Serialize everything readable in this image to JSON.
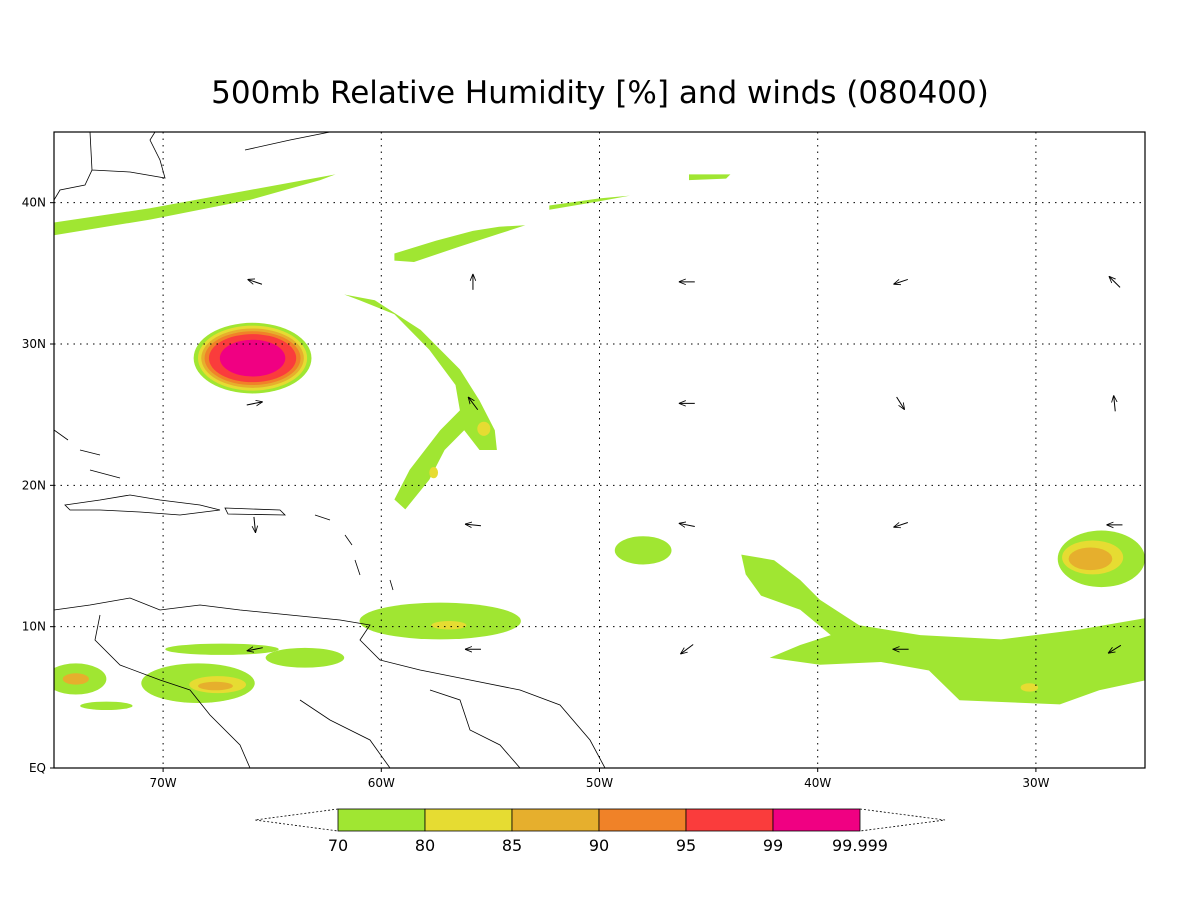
{
  "chart_data": {
    "type": "contour_map",
    "title": "500mb Relative Humidity [%] and winds (080400)",
    "xlim": [
      -75,
      -25
    ],
    "ylim": [
      0,
      45
    ],
    "xticks": [
      {
        "value": -70,
        "label": "70W"
      },
      {
        "value": -60,
        "label": "60W"
      },
      {
        "value": -50,
        "label": "50W"
      },
      {
        "value": -40,
        "label": "40W"
      },
      {
        "value": -30,
        "label": "30W"
      }
    ],
    "yticks": [
      {
        "value": 0,
        "label": "EQ"
      },
      {
        "value": 10,
        "label": "10N"
      },
      {
        "value": 20,
        "label": "20N"
      },
      {
        "value": 30,
        "label": "30N"
      },
      {
        "value": 40,
        "label": "40N"
      }
    ],
    "grid": true,
    "levels": [
      70,
      80,
      85,
      90,
      95,
      99,
      99.999
    ],
    "colors": [
      "#a0e632",
      "#e6dc32",
      "#e6af2d",
      "#f08228",
      "#fa3c3c",
      "#f00082"
    ],
    "areas": [
      {
        "level": 70,
        "points": [
          [
            -75,
            38.6
          ],
          [
            -70.6,
            39.6
          ],
          [
            -66,
            40.9
          ],
          [
            -62.1,
            42.0
          ],
          [
            -62.8,
            41.6
          ],
          [
            -66,
            40.2
          ],
          [
            -70.6,
            38.8
          ],
          [
            -75,
            37.7
          ]
        ]
      },
      {
        "level": 70,
        "points": [
          [
            -45.9,
            42.0
          ],
          [
            -44.0,
            42.0
          ],
          [
            -44.2,
            41.7
          ],
          [
            -45.9,
            41.6
          ]
        ]
      },
      {
        "level": 70,
        "points": [
          [
            -59.4,
            36.4
          ],
          [
            -57.5,
            37.3
          ],
          [
            -55.8,
            38.0
          ],
          [
            -54.6,
            38.3
          ],
          [
            -53.4,
            38.4
          ],
          [
            -54.6,
            37.8
          ],
          [
            -56.4,
            36.9
          ],
          [
            -58.5,
            35.8
          ],
          [
            -59.4,
            35.9
          ]
        ]
      },
      {
        "level": 70,
        "points": [
          [
            -52.3,
            39.8
          ],
          [
            -50.0,
            40.3
          ],
          [
            -48.6,
            40.5
          ],
          [
            -50.0,
            40.1
          ],
          [
            -52.3,
            39.5
          ]
        ]
      },
      {
        "level": 70,
        "points": [
          [
            -61.7,
            33.5
          ],
          [
            -60.3,
            33.1
          ],
          [
            -58.2,
            31.0
          ],
          [
            -56.4,
            28.2
          ],
          [
            -55.5,
            26.0
          ],
          [
            -54.8,
            23.9
          ],
          [
            -54.7,
            22.5
          ],
          [
            -55.5,
            22.5
          ],
          [
            -56.2,
            23.9
          ],
          [
            -57.1,
            22.5
          ],
          [
            -57.8,
            20.4
          ],
          [
            -58.9,
            18.3
          ],
          [
            -59.4,
            19.0
          ],
          [
            -58.7,
            21.1
          ],
          [
            -57.3,
            23.9
          ],
          [
            -56.4,
            25.3
          ],
          [
            -56.6,
            27.1
          ],
          [
            -57.8,
            29.6
          ],
          [
            -59.4,
            32.1
          ],
          [
            -61.0,
            33.1
          ]
        ]
      },
      {
        "level": 80,
        "ellipse": [
          -55.3,
          24.0,
          0.3,
          0.5
        ]
      },
      {
        "level": 80,
        "ellipse": [
          -57.6,
          20.9,
          0.2,
          0.4
        ]
      },
      {
        "level": 70,
        "ellipse": [
          -65.9,
          29.0,
          2.7,
          2.5
        ]
      },
      {
        "level": 80,
        "ellipse": [
          -65.9,
          29.0,
          2.5,
          2.3
        ]
      },
      {
        "level": 85,
        "ellipse": [
          -65.9,
          29.0,
          2.35,
          2.1
        ]
      },
      {
        "level": 90,
        "ellipse": [
          -65.9,
          29.0,
          2.2,
          1.9
        ]
      },
      {
        "level": 95,
        "ellipse": [
          -65.9,
          29.0,
          2.0,
          1.7
        ]
      },
      {
        "level": 99,
        "ellipse": [
          -65.9,
          29.0,
          1.5,
          1.3
        ]
      },
      {
        "level": 70,
        "ellipse": [
          -48.0,
          15.4,
          1.3,
          1.0
        ]
      },
      {
        "level": 70,
        "ellipse": [
          -57.3,
          10.4,
          3.7,
          1.3
        ]
      },
      {
        "level": 80,
        "ellipse": [
          -56.9,
          10.1,
          0.8,
          0.3
        ]
      },
      {
        "level": 70,
        "points": [
          [
            -43.5,
            15.1
          ],
          [
            -42.0,
            14.7
          ],
          [
            -40.8,
            13.3
          ],
          [
            -39.9,
            11.9
          ],
          [
            -38.1,
            10.1
          ],
          [
            -35.3,
            9.4
          ],
          [
            -31.6,
            9.1
          ],
          [
            -28.0,
            9.8
          ],
          [
            -25,
            10.6
          ],
          [
            -25,
            6.2
          ],
          [
            -27.1,
            5.5
          ],
          [
            -28.9,
            4.5
          ],
          [
            -33.5,
            4.8
          ],
          [
            -34.9,
            6.9
          ],
          [
            -37.1,
            7.5
          ],
          [
            -39.9,
            7.3
          ],
          [
            -42.2,
            7.8
          ],
          [
            -40.8,
            8.7
          ],
          [
            -39.4,
            9.4
          ],
          [
            -40.8,
            11.2
          ],
          [
            -42.6,
            12.2
          ],
          [
            -43.3,
            13.7
          ]
        ]
      },
      {
        "level": 80,
        "ellipse": [
          -30.3,
          5.7,
          0.4,
          0.3
        ]
      },
      {
        "level": 70,
        "ellipse": [
          -27.0,
          14.8,
          2.0,
          2.0
        ]
      },
      {
        "level": 80,
        "ellipse": [
          -27.4,
          14.9,
          1.4,
          1.2
        ]
      },
      {
        "level": 85,
        "ellipse": [
          -27.5,
          14.8,
          1.0,
          0.8
        ]
      },
      {
        "level": 70,
        "ellipse": [
          -68.4,
          6.0,
          2.6,
          1.4
        ]
      },
      {
        "level": 80,
        "ellipse": [
          -67.5,
          5.9,
          1.3,
          0.6
        ]
      },
      {
        "level": 85,
        "ellipse": [
          -67.6,
          5.8,
          0.8,
          0.3
        ]
      },
      {
        "level": 70,
        "ellipse": [
          -63.5,
          7.8,
          1.8,
          0.7
        ]
      },
      {
        "level": 70,
        "ellipse": [
          -67.3,
          8.4,
          2.6,
          0.4
        ]
      },
      {
        "level": 70,
        "ellipse": [
          -74.0,
          6.3,
          1.4,
          1.1
        ]
      },
      {
        "level": 85,
        "ellipse": [
          -74.0,
          6.3,
          0.6,
          0.4
        ]
      },
      {
        "level": 70,
        "ellipse": [
          -72.6,
          4.4,
          1.2,
          0.3
        ]
      }
    ],
    "winds": [
      [
        -65.8,
        34.4,
        -9,
        3
      ],
      [
        -55.8,
        34.4,
        0,
        10
      ],
      [
        -46.0,
        34.4,
        -10,
        0
      ],
      [
        -36.2,
        34.4,
        -9,
        -3
      ],
      [
        -26.4,
        34.4,
        -7,
        7
      ],
      [
        -65.8,
        25.8,
        10,
        2
      ],
      [
        -55.8,
        25.8,
        -6,
        8
      ],
      [
        -46.0,
        25.8,
        -10,
        0
      ],
      [
        -36.2,
        25.8,
        5,
        -8
      ],
      [
        -26.4,
        25.8,
        -1,
        10
      ],
      [
        -65.8,
        17.2,
        1,
        -10
      ],
      [
        -55.8,
        17.2,
        -10,
        1
      ],
      [
        -46.0,
        17.2,
        -10,
        2
      ],
      [
        -36.2,
        17.2,
        -9,
        -3
      ],
      [
        -26.4,
        17.2,
        -10,
        0
      ],
      [
        -65.8,
        8.4,
        -10,
        -2
      ],
      [
        -55.8,
        8.4,
        -10,
        0
      ],
      [
        -46.0,
        8.4,
        -8,
        -6
      ],
      [
        -36.2,
        8.4,
        -10,
        0
      ],
      [
        -26.4,
        8.4,
        -8,
        -5
      ]
    ]
  }
}
